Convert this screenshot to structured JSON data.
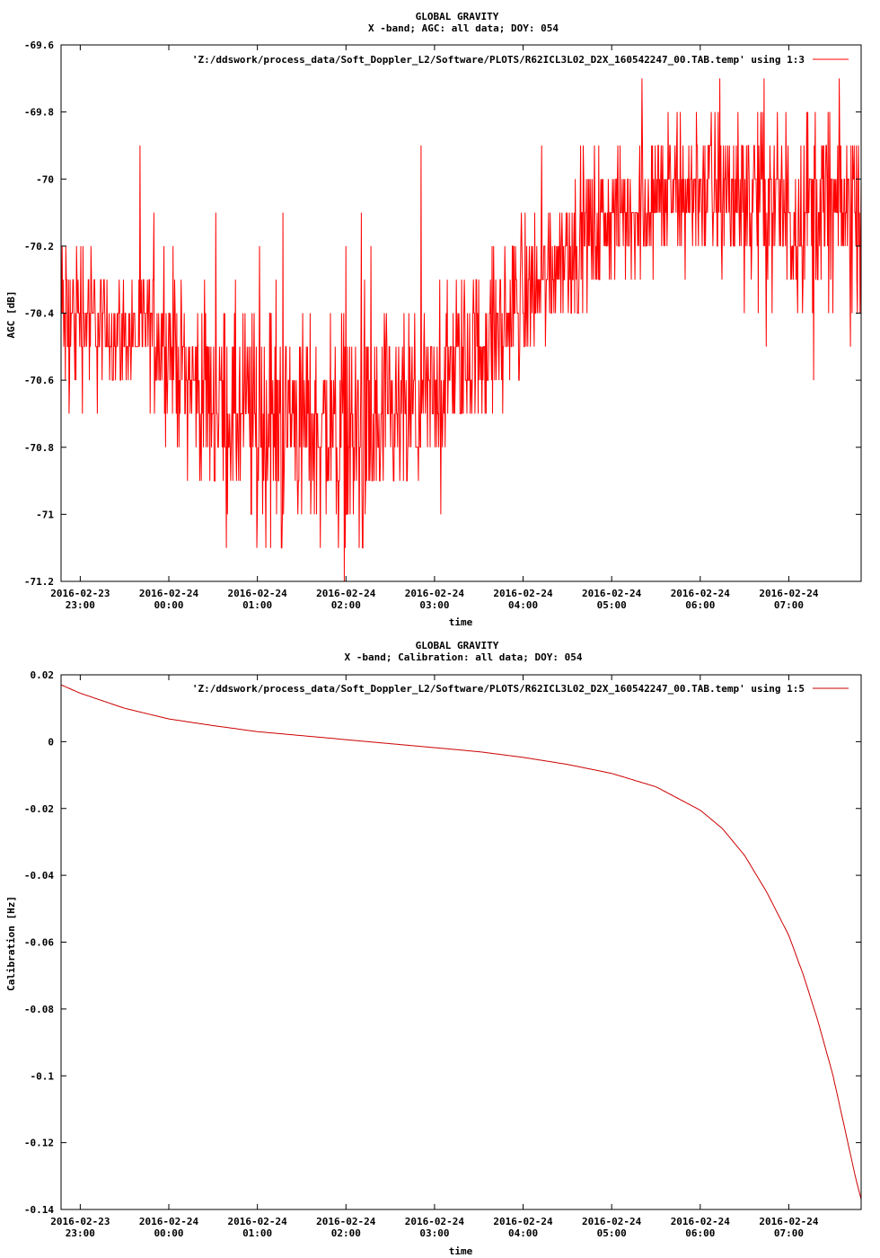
{
  "chart_data": [
    {
      "type": "line",
      "title_line1": "GLOBAL GRAVITY",
      "title_line2": "X -band; AGC: all data; DOY: 054",
      "xlabel": "time",
      "ylabel": "AGC [dB]",
      "legend": "'Z:/ddswork/process_data/Soft_Doppler_L2/Software/PLOTS/R62ICL3L02_D2X_160542247_00.TAB.temp' using 1:3",
      "legend_position": "top-right",
      "color": "#ff0000",
      "ylim": [
        -71.2,
        -69.6
      ],
      "yticks": [
        {
          "value": -69.6,
          "label": "-69.6"
        },
        {
          "value": -69.8,
          "label": "-69.8"
        },
        {
          "value": -70.0,
          "label": "-70"
        },
        {
          "value": -70.2,
          "label": "-70.2"
        },
        {
          "value": -70.4,
          "label": "-70.4"
        },
        {
          "value": -70.6,
          "label": "-70.6"
        },
        {
          "value": -70.8,
          "label": "-70.8"
        },
        {
          "value": -71.0,
          "label": "-71"
        },
        {
          "value": -71.2,
          "label": "-71.2"
        }
      ],
      "xlim": [
        "2016-02-23 22:47",
        "2016-02-24 07:49"
      ],
      "xticks": [
        {
          "value": "2016-02-23 23:00",
          "date": "2016-02-23",
          "time": "23:00"
        },
        {
          "value": "2016-02-24 00:00",
          "date": "2016-02-24",
          "time": "00:00"
        },
        {
          "value": "2016-02-24 01:00",
          "date": "2016-02-24",
          "time": "01:00"
        },
        {
          "value": "2016-02-24 02:00",
          "date": "2016-02-24",
          "time": "02:00"
        },
        {
          "value": "2016-02-24 03:00",
          "date": "2016-02-24",
          "time": "03:00"
        },
        {
          "value": "2016-02-24 04:00",
          "date": "2016-02-24",
          "time": "04:00"
        },
        {
          "value": "2016-02-24 05:00",
          "date": "2016-02-24",
          "time": "05:00"
        },
        {
          "value": "2016-02-24 06:00",
          "date": "2016-02-24",
          "time": "06:00"
        },
        {
          "value": "2016-02-24 07:00",
          "date": "2016-02-24",
          "time": "07:00"
        }
      ],
      "series": [
        {
          "x": [
            "2016-02-23 22:47",
            "2016-02-23 23:00",
            "2016-02-23 23:15",
            "2016-02-23 23:30",
            "2016-02-23 23:45",
            "2016-02-24 00:00",
            "2016-02-24 00:15",
            "2016-02-24 00:30",
            "2016-02-24 00:45",
            "2016-02-24 01:00",
            "2016-02-24 01:15",
            "2016-02-24 01:30",
            "2016-02-24 01:45",
            "2016-02-24 02:00",
            "2016-02-24 02:15",
            "2016-02-24 02:30",
            "2016-02-24 02:45",
            "2016-02-24 03:00",
            "2016-02-24 03:15",
            "2016-02-24 03:30",
            "2016-02-24 03:45",
            "2016-02-24 04:00",
            "2016-02-24 04:15",
            "2016-02-24 04:30",
            "2016-02-24 04:45",
            "2016-02-24 05:00",
            "2016-02-24 05:15",
            "2016-02-24 05:30",
            "2016-02-24 05:45",
            "2016-02-24 06:00",
            "2016-02-24 06:15",
            "2016-02-24 06:30",
            "2016-02-24 06:45",
            "2016-02-24 07:00",
            "2016-02-24 07:15",
            "2016-02-24 07:30",
            "2016-02-24 07:49"
          ],
          "y": [
            -70.45,
            -70.4,
            -70.45,
            -70.45,
            -70.45,
            -70.5,
            -70.6,
            -70.65,
            -70.7,
            -70.72,
            -70.72,
            -70.72,
            -70.75,
            -70.75,
            -70.78,
            -70.75,
            -70.7,
            -70.65,
            -70.55,
            -70.5,
            -70.45,
            -70.35,
            -70.28,
            -70.2,
            -70.15,
            -70.12,
            -70.1,
            -70.05,
            -70.05,
            -70.02,
            -70.05,
            -70.05,
            -70.05,
            -70.1,
            -70.08,
            -70.1,
            -70.1
          ],
          "spread": [
            0.15,
            0.12,
            0.1,
            0.08,
            0.1,
            0.12,
            0.12,
            0.15,
            0.15,
            0.18,
            0.18,
            0.15,
            0.15,
            0.18,
            0.2,
            0.15,
            0.15,
            0.12,
            0.12,
            0.12,
            0.12,
            0.12,
            0.1,
            0.1,
            0.1,
            0.1,
            0.1,
            0.12,
            0.12,
            0.12,
            0.12,
            0.15,
            0.15,
            0.15,
            0.15,
            0.15,
            0.15
          ]
        }
      ]
    },
    {
      "type": "line",
      "title_line1": "GLOBAL GRAVITY",
      "title_line2": "X -band; Calibration: all data; DOY: 054",
      "xlabel": "time",
      "ylabel": "Calibration [Hz]",
      "legend": "'Z:/ddswork/process_data/Soft_Doppler_L2/Software/PLOTS/R62ICL3L02_D2X_160542247_00.TAB.temp' using 1:5",
      "legend_position": "top-right",
      "color": "#cc0000",
      "ylim": [
        -0.14,
        0.02
      ],
      "yticks": [
        {
          "value": 0.02,
          "label": "0.02"
        },
        {
          "value": 0.0,
          "label": "0"
        },
        {
          "value": -0.02,
          "label": "-0.02"
        },
        {
          "value": -0.04,
          "label": "-0.04"
        },
        {
          "value": -0.06,
          "label": "-0.06"
        },
        {
          "value": -0.08,
          "label": "-0.08"
        },
        {
          "value": -0.1,
          "label": "-0.1"
        },
        {
          "value": -0.12,
          "label": "-0.12"
        },
        {
          "value": -0.14,
          "label": "-0.14"
        }
      ],
      "xlim": [
        "2016-02-23 22:47",
        "2016-02-24 07:49"
      ],
      "xticks": [
        {
          "value": "2016-02-23 23:00",
          "date": "2016-02-23",
          "time": "23:00"
        },
        {
          "value": "2016-02-24 00:00",
          "date": "2016-02-24",
          "time": "00:00"
        },
        {
          "value": "2016-02-24 01:00",
          "date": "2016-02-24",
          "time": "01:00"
        },
        {
          "value": "2016-02-24 02:00",
          "date": "2016-02-24",
          "time": "02:00"
        },
        {
          "value": "2016-02-24 03:00",
          "date": "2016-02-24",
          "time": "03:00"
        },
        {
          "value": "2016-02-24 04:00",
          "date": "2016-02-24",
          "time": "04:00"
        },
        {
          "value": "2016-02-24 05:00",
          "date": "2016-02-24",
          "time": "05:00"
        },
        {
          "value": "2016-02-24 06:00",
          "date": "2016-02-24",
          "time": "06:00"
        },
        {
          "value": "2016-02-24 07:00",
          "date": "2016-02-24",
          "time": "07:00"
        }
      ],
      "series": [
        {
          "x": [
            "2016-02-23 22:47",
            "2016-02-23 23:00",
            "2016-02-23 23:30",
            "2016-02-24 00:00",
            "2016-02-24 00:30",
            "2016-02-24 01:00",
            "2016-02-24 01:30",
            "2016-02-24 02:00",
            "2016-02-24 02:30",
            "2016-02-24 03:00",
            "2016-02-24 03:30",
            "2016-02-24 04:00",
            "2016-02-24 04:30",
            "2016-02-24 05:00",
            "2016-02-24 05:30",
            "2016-02-24 06:00",
            "2016-02-24 06:15",
            "2016-02-24 06:30",
            "2016-02-24 06:45",
            "2016-02-24 07:00",
            "2016-02-24 07:10",
            "2016-02-24 07:20",
            "2016-02-24 07:30",
            "2016-02-24 07:35",
            "2016-02-24 07:40",
            "2016-02-24 07:45",
            "2016-02-24 07:49"
          ],
          "y": [
            0.017,
            0.0145,
            0.01,
            0.0068,
            0.0048,
            0.003,
            0.0018,
            0.0006,
            -0.0006,
            -0.0018,
            -0.003,
            -0.0047,
            -0.0068,
            -0.0095,
            -0.0135,
            -0.0205,
            -0.026,
            -0.034,
            -0.045,
            -0.058,
            -0.07,
            -0.084,
            -0.1,
            -0.11,
            -0.12,
            -0.13,
            -0.137
          ]
        }
      ]
    }
  ]
}
